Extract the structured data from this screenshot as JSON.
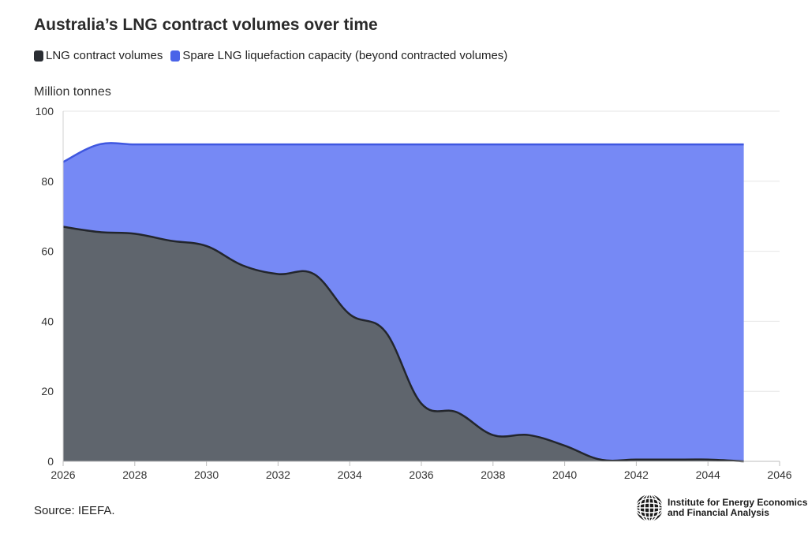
{
  "title": "Australia’s LNG contract volumes over time",
  "legend": [
    {
      "label": "LNG contract volumes",
      "color": "#2a2d33"
    },
    {
      "label": "Spare LNG liquefaction capacity (beyond contracted volumes)",
      "color": "#4a63e8"
    }
  ],
  "source": "Source: IEEFA.",
  "logo": {
    "line1": "Institute for Energy Economics",
    "line2": "and Financial Analysis",
    "icon": "globe-icon"
  },
  "colors": {
    "contract_fill": "#5f656d",
    "contract_line": "#23262c",
    "capacity_fill": "#7689f5",
    "capacity_line": "#3f57e0",
    "grid": "#e6e6e6"
  },
  "chart_data": {
    "type": "area",
    "title": "Australia’s LNG contract volumes over time",
    "xlabel": "",
    "ylabel": "Million tonnes",
    "xlim": [
      2026,
      2046
    ],
    "ylim": [
      0,
      100
    ],
    "x_ticks": [
      "2026",
      "2028",
      "2030",
      "2032",
      "2034",
      "2036",
      "2038",
      "2040",
      "2042",
      "2044",
      "2046"
    ],
    "y_ticks": [
      "0",
      "20",
      "40",
      "60",
      "80",
      "100"
    ],
    "grid": true,
    "legend_position": "top-left",
    "x": [
      2026,
      2027,
      2028,
      2029,
      2030,
      2031,
      2032,
      2033,
      2034,
      2035,
      2036,
      2037,
      2038,
      2039,
      2040,
      2041,
      2042,
      2043,
      2044,
      2045
    ],
    "series": [
      {
        "name": "LNG contract volumes",
        "values": [
          67,
          65.5,
          65,
          63,
          61.5,
          56,
          53.5,
          53.5,
          42,
          37,
          16.5,
          14,
          7.5,
          7.5,
          4.5,
          0.5,
          0.5,
          0.5,
          0.5,
          0
        ]
      },
      {
        "name": "Spare LNG liquefaction capacity (beyond contracted volumes)",
        "total_capacity": [
          85.5,
          90.5,
          90.5,
          90.5,
          90.5,
          90.5,
          90.5,
          90.5,
          90.5,
          90.5,
          90.5,
          90.5,
          90.5,
          90.5,
          90.5,
          90.5,
          90.5,
          90.5,
          90.5,
          90.5
        ]
      }
    ]
  }
}
